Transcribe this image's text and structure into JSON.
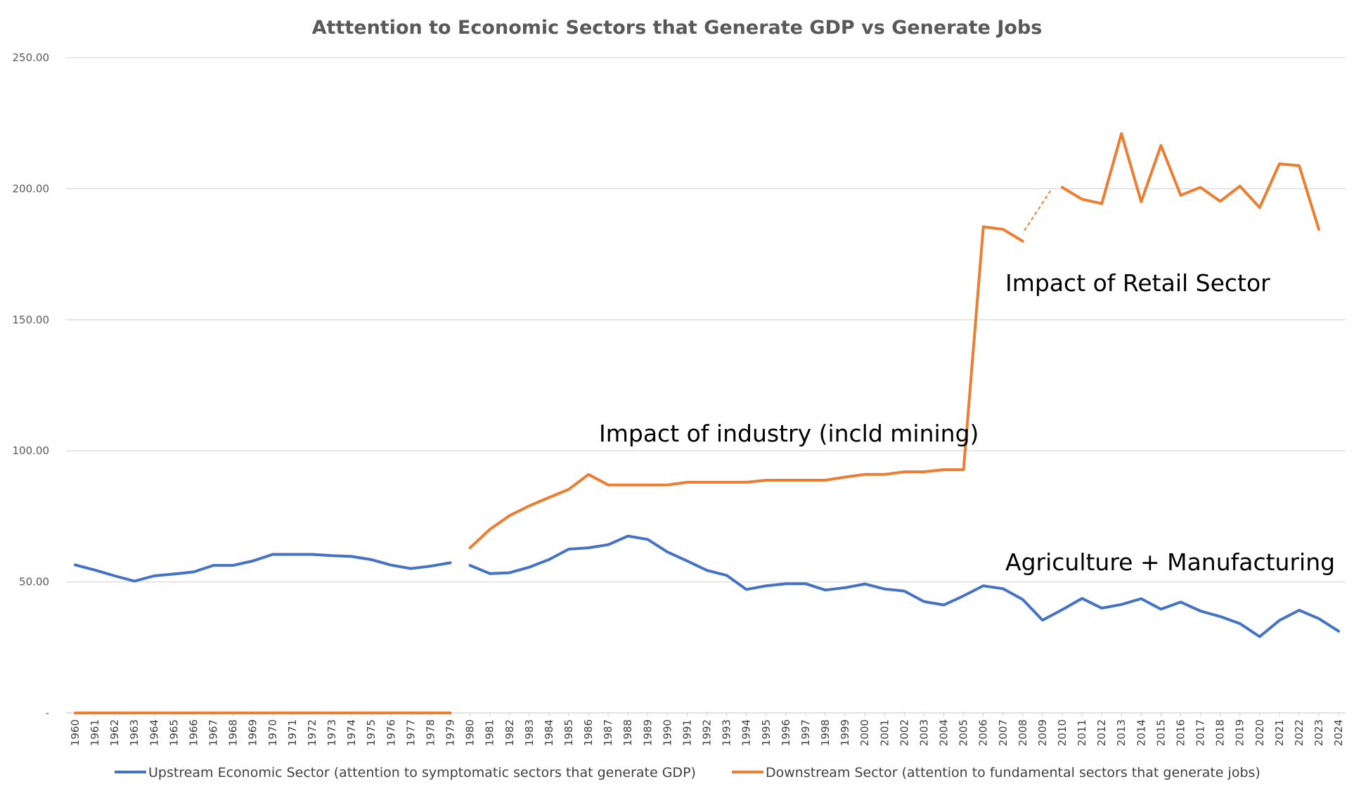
{
  "chart_data": {
    "type": "line",
    "title": "Atttention to Economic Sectors that Generate GDP vs Generate Jobs",
    "xlabel": "",
    "ylabel": "",
    "ylim": [
      0,
      250
    ],
    "yticks": [
      {
        "value": 0,
        "label": "-"
      },
      {
        "value": 50,
        "label": "50.00"
      },
      {
        "value": 100,
        "label": "100.00"
      },
      {
        "value": 150,
        "label": "150.00"
      },
      {
        "value": 200,
        "label": "200.00"
      },
      {
        "value": 250,
        "label": "250.00"
      }
    ],
    "grid": true,
    "legend_position": "bottom",
    "x": [
      "1960",
      "1961",
      "1962",
      "1963",
      "1964",
      "1965",
      "1966",
      "1967",
      "1968",
      "1969",
      "1970",
      "1971",
      "1972",
      "1973",
      "1974",
      "1975",
      "1976",
      "1977",
      "1978",
      "1979",
      "1980",
      "1981",
      "1982",
      "1983",
      "1984",
      "1985",
      "1986",
      "1987",
      "1988",
      "1989",
      "1990",
      "1991",
      "1992",
      "1993",
      "1994",
      "1995",
      "1996",
      "1997",
      "1998",
      "1999",
      "2000",
      "2001",
      "2002",
      "2003",
      "2004",
      "2005",
      "2006",
      "2007",
      "2008",
      "2009",
      "2010",
      "2011",
      "2012",
      "2013",
      "2014",
      "2015",
      "2016",
      "2017",
      "2018",
      "2019",
      "2020",
      "2021",
      "2022",
      "2023",
      "2024"
    ],
    "series": [
      {
        "name": "Upstream Economic Sector (attention to symptomatic sectors that generate GDP)",
        "color": "#4472C4",
        "values": [
          56.5,
          54.5,
          52.3,
          50.3,
          52.3,
          53.0,
          53.8,
          56.3,
          56.3,
          58.0,
          60.5,
          60.5,
          60.5,
          60.0,
          59.7,
          58.5,
          56.4,
          55.1,
          56.0,
          57.3,
          56.3,
          53.2,
          53.5,
          55.6,
          58.5,
          62.5,
          63.0,
          64.2,
          67.5,
          66.2,
          61.4,
          58.0,
          54.4,
          52.5,
          47.1,
          48.5,
          49.3,
          49.3,
          46.9,
          47.8,
          49.2,
          47.3,
          46.5,
          42.5,
          41.2,
          44.7,
          48.5,
          47.4,
          43.3,
          35.4,
          39.4,
          43.7,
          40.0,
          41.4,
          43.6,
          39.6,
          42.3,
          38.9,
          36.8,
          34.1,
          29.1,
          35.3,
          39.2,
          36.0,
          31.2
        ],
        "gaps": [
          [
            1979,
            1980
          ]
        ]
      },
      {
        "name": "Downstream Sector (attention to fundamental sectors that generate jobs)",
        "color": "#ED7D31",
        "values": [
          0,
          0,
          0,
          0,
          0,
          0,
          0,
          0,
          0,
          0,
          0,
          0,
          0,
          0,
          0,
          0,
          0,
          0,
          0,
          0,
          63.0,
          70.0,
          75.3,
          79.0,
          82.2,
          85.3,
          91.0,
          87.0,
          87.0,
          87.0,
          87.0,
          88.0,
          88.0,
          88.0,
          88.0,
          88.8,
          88.8,
          88.8,
          88.8,
          90.0,
          91.0,
          91.0,
          92.0,
          92.0,
          92.8,
          92.8,
          185.5,
          184.5,
          180.0,
          null,
          200.5,
          196.0,
          194.3,
          221.0,
          195.0,
          216.5,
          197.5,
          200.5,
          195.2,
          201.0,
          192.8,
          209.5,
          208.8,
          184.5,
          null
        ],
        "dashed_bridge": [
          2008,
          2010
        ]
      }
    ],
    "annotations": [
      {
        "text": "Impact of industry (incld mining)"
      },
      {
        "text": "Impact of Retail Sector"
      },
      {
        "text": "Agriculture + Manufacturing"
      }
    ]
  }
}
